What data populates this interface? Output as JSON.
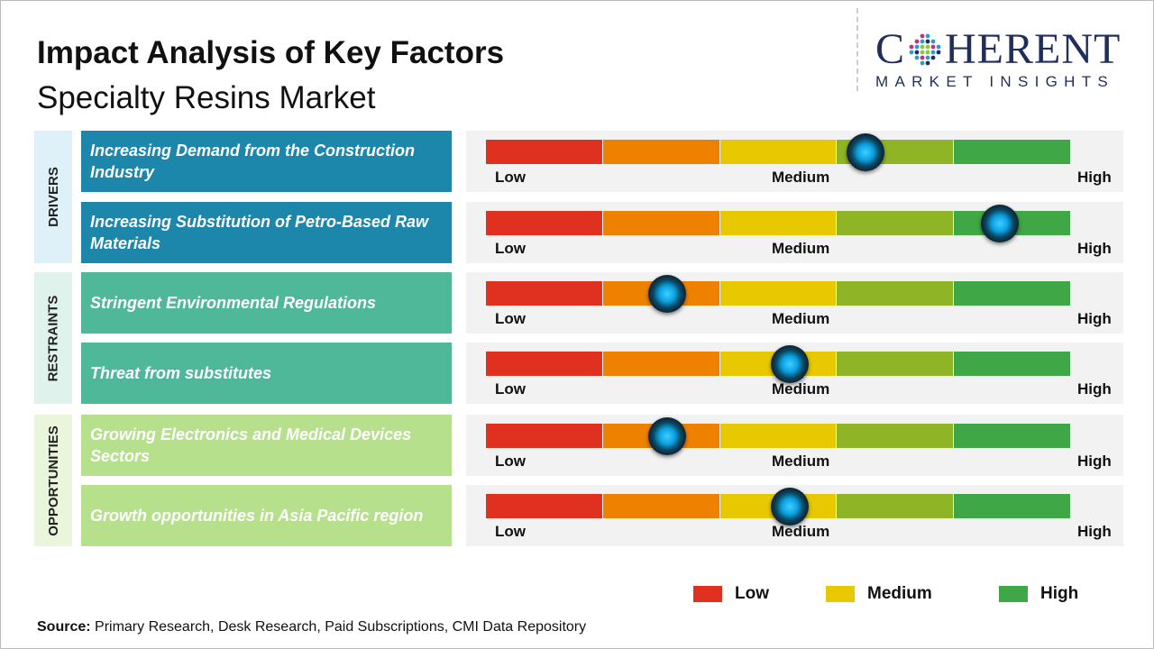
{
  "header": {
    "title": "Impact Analysis of Key Factors",
    "subtitle": "Specialty Resins Market"
  },
  "logo": {
    "main_left": "C",
    "main_right": "HERENT",
    "sub": "MARKET INSIGHTS"
  },
  "chart_data": {
    "type": "gauge-table",
    "scale_labels": [
      "Low",
      "Medium",
      "High"
    ],
    "segment_colors": [
      "#e03020",
      "#ee8200",
      "#e8c800",
      "#8fb526",
      "#3fa745"
    ],
    "categories": [
      {
        "name": "DRIVERS",
        "color": "#1c87ab",
        "bg": "#dff1f8",
        "factors": [
          {
            "label": "Increasing Demand from the Construction Industry",
            "impact": 0.65
          },
          {
            "label": "Increasing Substitution of Petro-Based Raw Materials",
            "impact": 0.88
          }
        ]
      },
      {
        "name": "RESTRAINTS",
        "color": "#4fb899",
        "bg": "#e0f2ec",
        "factors": [
          {
            "label": "Stringent Environmental Regulations",
            "impact": 0.31
          },
          {
            "label": "Threat from substitutes",
            "impact": 0.52
          }
        ]
      },
      {
        "name": "OPPORTUNITIES",
        "color": "#b6e08b",
        "bg": "#eaf6dc",
        "factors": [
          {
            "label": "Growing Electronics and Medical Devices Sectors",
            "impact": 0.31
          },
          {
            "label": "Growth opportunities in Asia Pacific region",
            "impact": 0.52
          }
        ]
      }
    ],
    "legend": [
      {
        "label": "Low",
        "color": "#e03020"
      },
      {
        "label": "Medium",
        "color": "#e8c800"
      },
      {
        "label": "High",
        "color": "#3fa745"
      }
    ]
  },
  "source": {
    "label": "Source:",
    "text": " Primary Research, Desk Research, Paid Subscriptions, CMI Data Repository"
  }
}
